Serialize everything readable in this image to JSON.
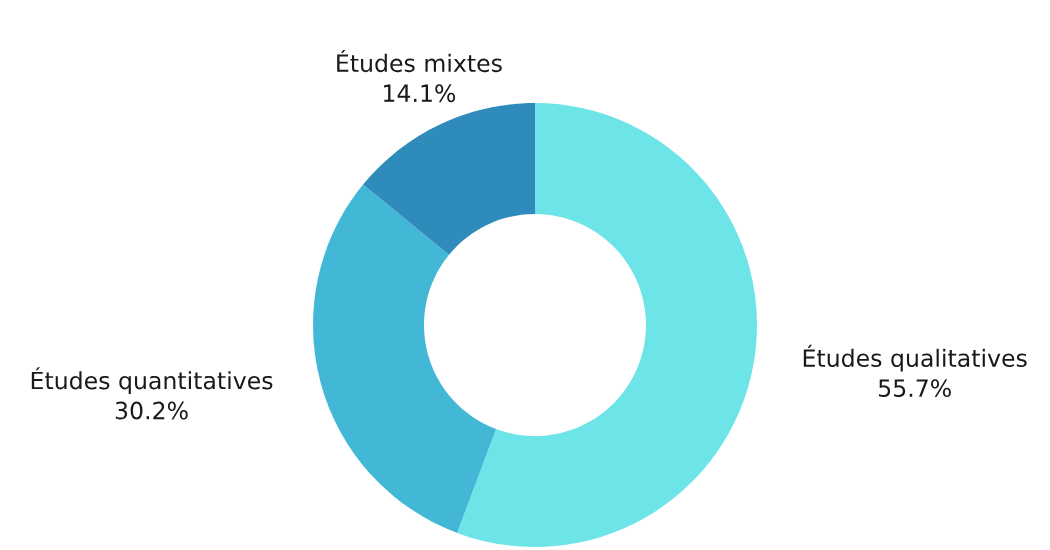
{
  "chart_data": {
    "type": "donut",
    "categories": [
      "Études qualitatives",
      "Études quantitatives",
      "Études mixtes"
    ],
    "values": [
      55.7,
      30.2,
      14.1
    ],
    "colors": [
      "#6ce4e8",
      "#43b8d6",
      "#2e8bbb"
    ],
    "value_labels": [
      "55.7%",
      "30.2%",
      "14.1%"
    ],
    "legend": false
  }
}
